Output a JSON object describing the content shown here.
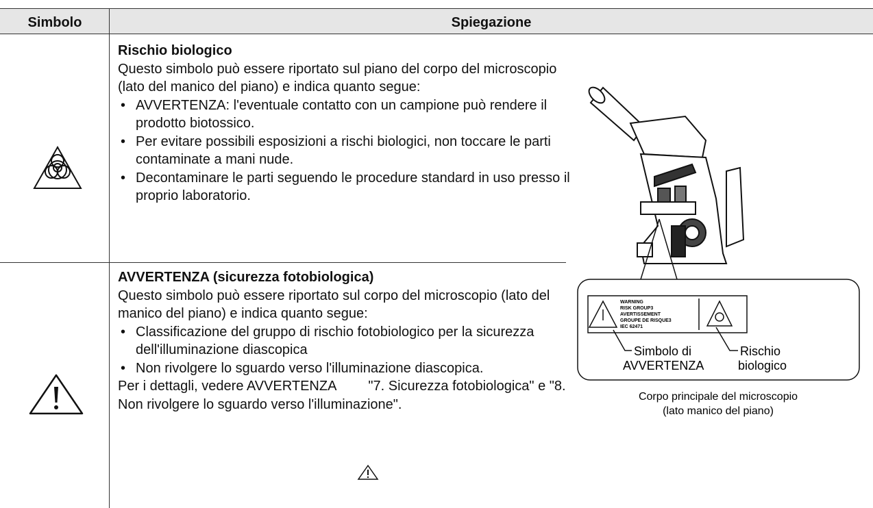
{
  "table": {
    "headers": [
      "Simbolo",
      "Spiegazione"
    ],
    "rows": [
      {
        "title": "Rischio biologico",
        "text": "Questo simbolo può essere riportato sul piano del corpo del microscopio (lato del manico del piano) e indica quanto segue:",
        "bullets": [
          "AVVERTENZA: l'eventuale contatto con un campione può rendere il prodotto biotossico.",
          "Per evitare possibili esposizioni a rischi biologici, non toccare le parti contaminate a mani nude.",
          "Decontaminare le parti seguendo le procedure standard in uso presso il proprio laboratorio."
        ]
      },
      {
        "title": "AVVERTENZA (sicurezza fotobiologica)",
        "text": "Questo simbolo può essere riportato sul corpo del microscopio (lato del manico del piano) e indica quanto segue:",
        "bullets": [
          "Classificazione del gruppo di rischio fotobiologico per la sicurezza dell'illuminazione diascopica",
          "Non rivolgere lo sguardo verso l'illuminazione diascopica."
        ],
        "note_before_icon": "Per i dettagli, vedere AVVERTENZA",
        "note_after_icon": "\"7. Sicurezza fotobiologica\" e \"8. Non rivolgere lo sguardo verso l'illuminazione\"."
      }
    ]
  },
  "figure": {
    "label_lines": [
      "WARNING",
      "RISK GROUP3",
      "AVERTISSEMENT",
      "GROUPE DE RISQUE3",
      "IEC 62471"
    ],
    "callouts": [
      {
        "lines": [
          "Simbolo di",
          "AVVERTENZA"
        ]
      },
      {
        "lines": [
          "Rischio",
          "biologico"
        ]
      }
    ],
    "caption_lines": [
      "Corpo principale del microscopio",
      "(lato manico del piano)"
    ]
  }
}
